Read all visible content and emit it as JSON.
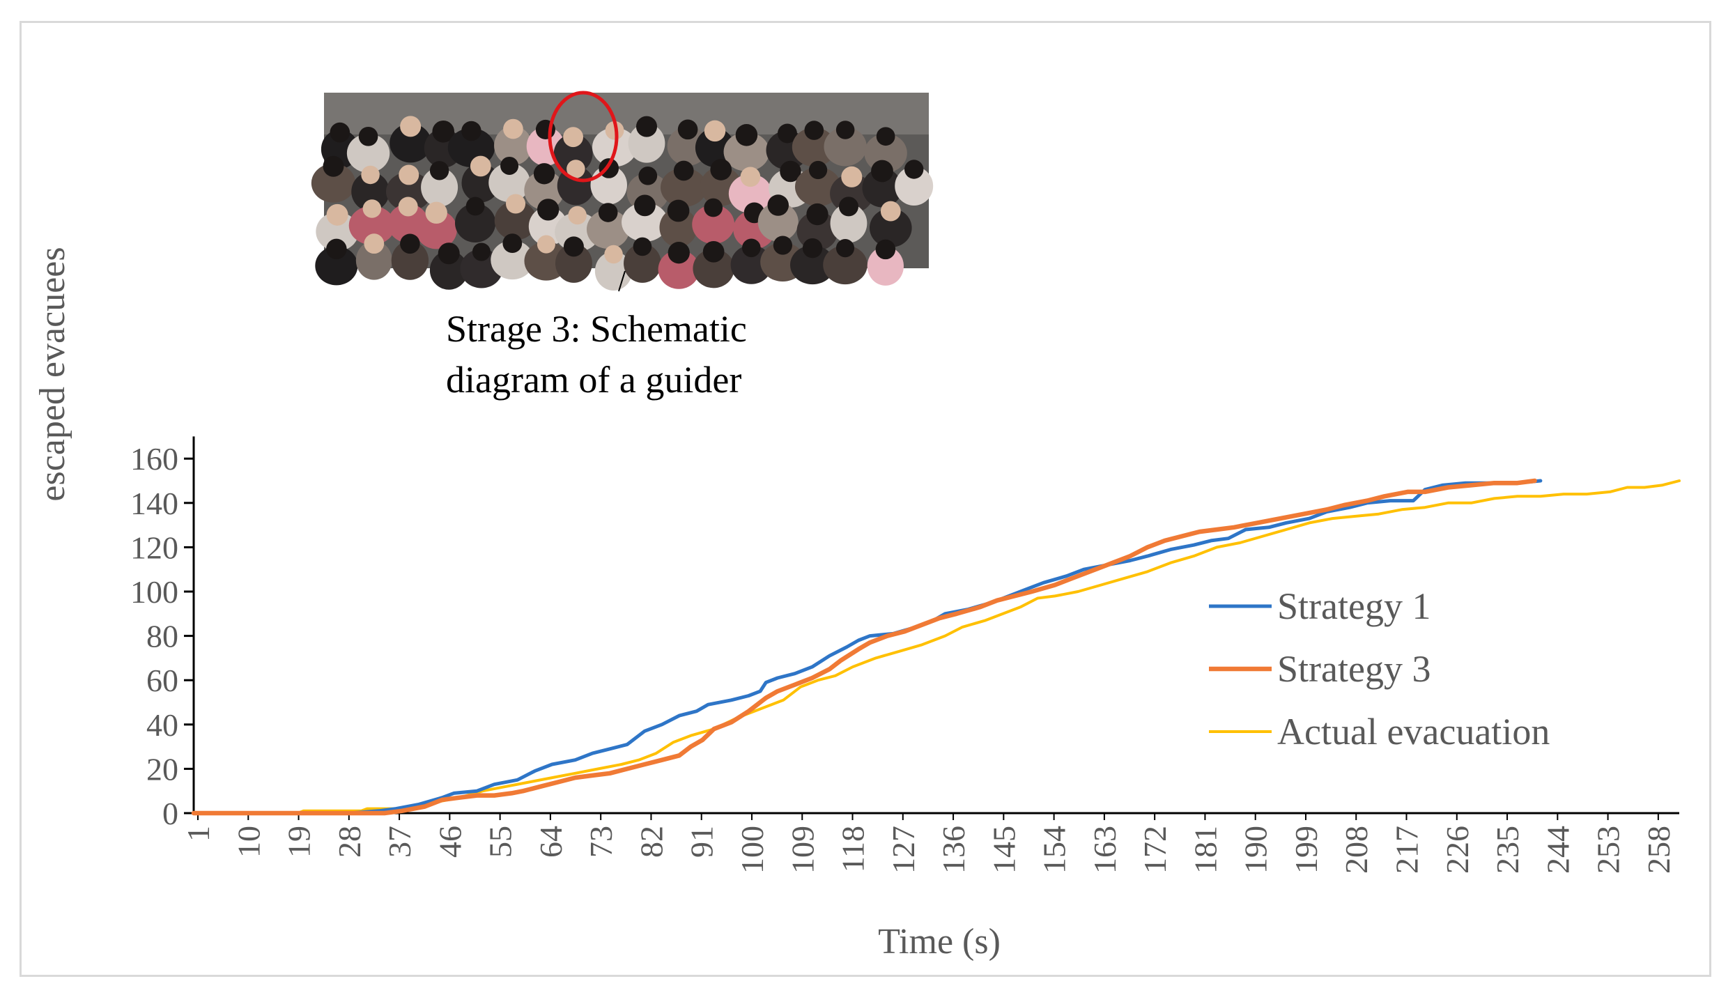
{
  "chart_data": {
    "type": "line",
    "xlabel": "Time (s)",
    "ylabel": "escaped  evacuees",
    "ylim": [
      0,
      170
    ],
    "yticks": [
      0,
      20,
      40,
      60,
      80,
      100,
      120,
      140,
      160
    ],
    "categories": [
      "1",
      "10",
      "19",
      "28",
      "37",
      "46",
      "55",
      "64",
      "73",
      "82",
      "91",
      "100",
      "109",
      "118",
      "127",
      "136",
      "145",
      "154",
      "163",
      "172",
      "181",
      "190",
      "199",
      "208",
      "217",
      "226",
      "235",
      "244",
      "253",
      "258"
    ],
    "grid": false,
    "legend_position": "right",
    "annotation": {
      "line1": "Strage  3: Schematic",
      "line2": "diagram  of a guider",
      "image_description": "photo"
    },
    "series": [
      {
        "name": "Strategy 1",
        "color": "#2E75C7",
        "points": [
          [
            1,
            0
          ],
          [
            28,
            0
          ],
          [
            33,
            1
          ],
          [
            36,
            2
          ],
          [
            40,
            4
          ],
          [
            44,
            7
          ],
          [
            46,
            9
          ],
          [
            50,
            10
          ],
          [
            53,
            13
          ],
          [
            57,
            15
          ],
          [
            60,
            19
          ],
          [
            63,
            22
          ],
          [
            67,
            24
          ],
          [
            70,
            27
          ],
          [
            73,
            29
          ],
          [
            76,
            31
          ],
          [
            79,
            37
          ],
          [
            82,
            40
          ],
          [
            85,
            44
          ],
          [
            88,
            46
          ],
          [
            90,
            49
          ],
          [
            94,
            51
          ],
          [
            97,
            53
          ],
          [
            99,
            55
          ],
          [
            100,
            59
          ],
          [
            102,
            61
          ],
          [
            105,
            63
          ],
          [
            108,
            66
          ],
          [
            111,
            71
          ],
          [
            114,
            75
          ],
          [
            116,
            78
          ],
          [
            118,
            80
          ],
          [
            122,
            81
          ],
          [
            126,
            84
          ],
          [
            129,
            87
          ],
          [
            131,
            90
          ],
          [
            135,
            92
          ],
          [
            139,
            95
          ],
          [
            142,
            98
          ],
          [
            145,
            101
          ],
          [
            148,
            104
          ],
          [
            152,
            107
          ],
          [
            155,
            110
          ],
          [
            159,
            112
          ],
          [
            163,
            114
          ],
          [
            166,
            116
          ],
          [
            170,
            119
          ],
          [
            174,
            121
          ],
          [
            177,
            123
          ],
          [
            180,
            124
          ],
          [
            183,
            128
          ],
          [
            187,
            129
          ],
          [
            190,
            131
          ],
          [
            194,
            133
          ],
          [
            197,
            136
          ],
          [
            201,
            138
          ],
          [
            204,
            140
          ],
          [
            208,
            141
          ],
          [
            212,
            141
          ],
          [
            214,
            146
          ],
          [
            217,
            148
          ],
          [
            221,
            149
          ],
          [
            226,
            149
          ],
          [
            230,
            149
          ],
          [
            234,
            150
          ]
        ]
      },
      {
        "name": "Strategy 3",
        "color": "#F07A35",
        "points": [
          [
            1,
            0
          ],
          [
            34,
            0
          ],
          [
            37,
            1
          ],
          [
            41,
            3
          ],
          [
            44,
            6
          ],
          [
            47,
            7
          ],
          [
            50,
            8
          ],
          [
            53,
            8
          ],
          [
            56,
            9
          ],
          [
            58,
            10
          ],
          [
            61,
            12
          ],
          [
            64,
            14
          ],
          [
            67,
            16
          ],
          [
            70,
            17
          ],
          [
            73,
            18
          ],
          [
            76,
            20
          ],
          [
            79,
            22
          ],
          [
            82,
            24
          ],
          [
            85,
            26
          ],
          [
            87,
            30
          ],
          [
            89,
            33
          ],
          [
            91,
            38
          ],
          [
            94,
            41
          ],
          [
            97,
            46
          ],
          [
            100,
            52
          ],
          [
            102,
            55
          ],
          [
            105,
            58
          ],
          [
            108,
            61
          ],
          [
            111,
            65
          ],
          [
            113,
            69
          ],
          [
            116,
            74
          ],
          [
            118,
            77
          ],
          [
            121,
            80
          ],
          [
            124,
            82
          ],
          [
            127,
            85
          ],
          [
            130,
            88
          ],
          [
            133,
            90
          ],
          [
            137,
            93
          ],
          [
            140,
            96
          ],
          [
            143,
            98
          ],
          [
            146,
            100
          ],
          [
            150,
            103
          ],
          [
            153,
            106
          ],
          [
            157,
            110
          ],
          [
            160,
            113
          ],
          [
            163,
            116
          ],
          [
            166,
            120
          ],
          [
            169,
            123
          ],
          [
            172,
            125
          ],
          [
            175,
            127
          ],
          [
            178,
            128
          ],
          [
            181,
            129
          ],
          [
            185,
            131
          ],
          [
            189,
            133
          ],
          [
            193,
            135
          ],
          [
            197,
            137
          ],
          [
            200,
            139
          ],
          [
            204,
            141
          ],
          [
            207,
            143
          ],
          [
            211,
            145
          ],
          [
            214,
            145
          ],
          [
            218,
            147
          ],
          [
            222,
            148
          ],
          [
            226,
            149
          ],
          [
            230,
            149
          ],
          [
            233,
            150
          ]
        ]
      },
      {
        "name": "Actual evacuation",
        "color": "#FFC000",
        "points": [
          [
            1,
            0
          ],
          [
            19,
            0
          ],
          [
            20,
            1
          ],
          [
            30,
            1
          ],
          [
            31,
            2
          ],
          [
            36,
            2
          ],
          [
            39,
            3
          ],
          [
            43,
            5
          ],
          [
            47,
            7
          ],
          [
            51,
            10
          ],
          [
            55,
            12
          ],
          [
            59,
            14
          ],
          [
            63,
            16
          ],
          [
            67,
            18
          ],
          [
            71,
            20
          ],
          [
            75,
            22
          ],
          [
            78,
            24
          ],
          [
            81,
            27
          ],
          [
            84,
            32
          ],
          [
            87,
            35
          ],
          [
            91,
            38
          ],
          [
            95,
            43
          ],
          [
            99,
            47
          ],
          [
            103,
            51
          ],
          [
            106,
            57
          ],
          [
            109,
            60
          ],
          [
            112,
            62
          ],
          [
            115,
            66
          ],
          [
            119,
            70
          ],
          [
            123,
            73
          ],
          [
            127,
            76
          ],
          [
            131,
            80
          ],
          [
            134,
            84
          ],
          [
            138,
            87
          ],
          [
            141,
            90
          ],
          [
            144,
            93
          ],
          [
            147,
            97
          ],
          [
            150,
            98
          ],
          [
            154,
            100
          ],
          [
            158,
            103
          ],
          [
            162,
            106
          ],
          [
            166,
            109
          ],
          [
            170,
            113
          ],
          [
            174,
            116
          ],
          [
            178,
            120
          ],
          [
            182,
            122
          ],
          [
            186,
            125
          ],
          [
            190,
            128
          ],
          [
            194,
            131
          ],
          [
            198,
            133
          ],
          [
            202,
            134
          ],
          [
            206,
            135
          ],
          [
            210,
            137
          ],
          [
            214,
            138
          ],
          [
            218,
            140
          ],
          [
            222,
            140
          ],
          [
            226,
            142
          ],
          [
            230,
            143
          ],
          [
            234,
            143
          ],
          [
            238,
            144
          ],
          [
            242,
            144
          ],
          [
            246,
            145
          ],
          [
            249,
            147
          ],
          [
            252,
            147
          ],
          [
            255,
            148
          ],
          [
            258,
            150
          ]
        ]
      }
    ]
  }
}
